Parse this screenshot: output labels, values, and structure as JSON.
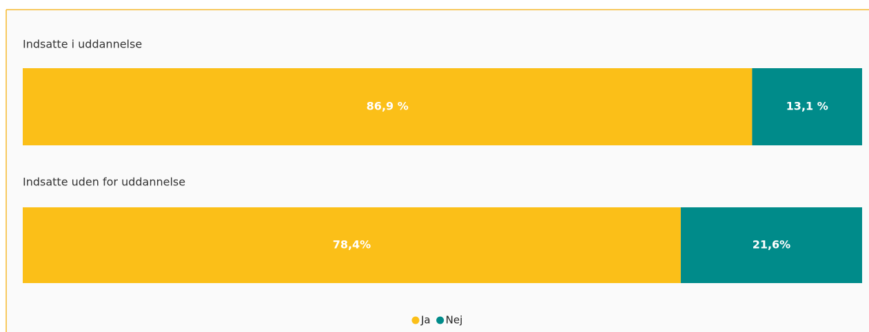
{
  "chart_data": {
    "type": "stacked-bar-100",
    "categories": [
      "Indsatte i uddannelse",
      "Indsatte uden for uddannelse"
    ],
    "series": [
      {
        "name": "Ja",
        "color": "#fbbf18",
        "values": [
          86.9,
          78.4
        ],
        "value_labels": [
          "86,9 %",
          "78,4%"
        ]
      },
      {
        "name": "Nej",
        "color": "#008b8a",
        "values": [
          13.1,
          21.6
        ],
        "value_labels": [
          "13,1 %",
          "21,6%"
        ]
      }
    ],
    "xlim": [
      0,
      100
    ]
  }
}
